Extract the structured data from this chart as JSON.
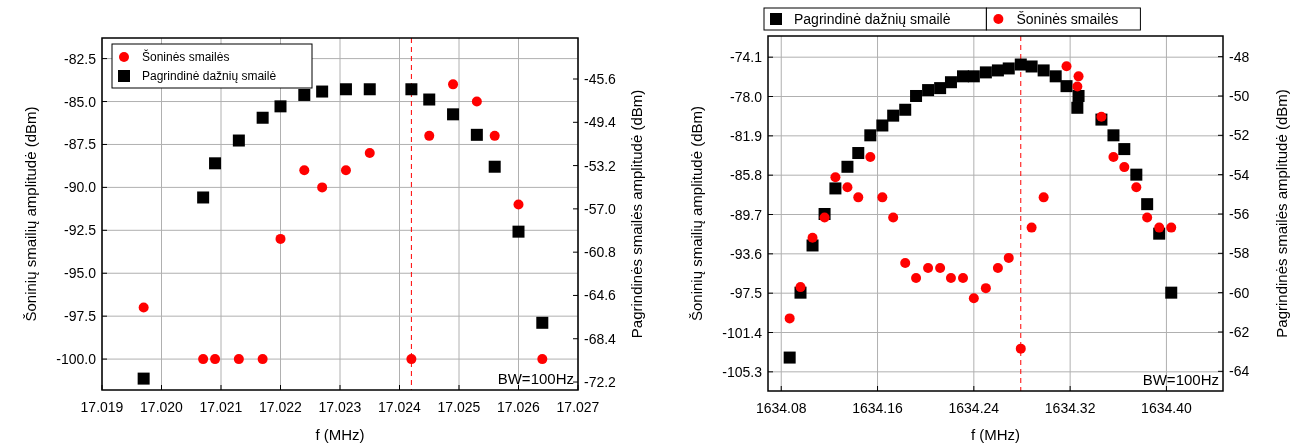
{
  "chart_data": [
    {
      "type": "scatter",
      "xlabel": "f (MHz)",
      "ylabel": "Šoninių smailių amplitudė (dBm)",
      "y2label": "Pagrindinės smailės amplitudė (dBm)",
      "xlim": [
        17.019,
        17.027
      ],
      "xticks": [
        17.019,
        {
          "value": 17.02,
          "label": "17.020"
        },
        17.021,
        17.022,
        17.023,
        17.024,
        17.025,
        17.026,
        17.027
      ],
      "ylim": [
        -101.8,
        -81.3
      ],
      "yticks": [
        -82.5,
        {
          "value": -85,
          "label": "-85.0"
        },
        -87.5,
        {
          "value": -90,
          "label": "-90.0"
        },
        -92.5,
        {
          "value": -95,
          "label": "-95.0"
        },
        -97.5,
        {
          "value": -100,
          "label": "-100.0"
        }
      ],
      "y2lim": [
        -72.9,
        -42.0
      ],
      "y2ticks": [
        -45.6,
        -49.4,
        -53.2,
        {
          "value": -57,
          "label": "-57.0"
        },
        -60.8,
        -64.6,
        -68.4,
        -72.2
      ],
      "grid": true,
      "legend": "top left",
      "annotations": [
        "BW=100Hz"
      ],
      "ref_lines": [
        {
          "axis": "x",
          "value": 17.0242,
          "color": "#ff0000",
          "line_style": "dashed"
        }
      ],
      "series": [
        {
          "name": "Šoninės smailės",
          "color": "#ff0000",
          "marker": "circle",
          "x": [
            17.0197,
            17.0207,
            17.0209,
            17.0213,
            17.0217,
            17.022,
            17.0224,
            17.0227,
            17.0231,
            17.0235,
            17.0242,
            17.0245,
            17.0249,
            17.0253,
            17.0256,
            17.026,
            17.0264
          ],
          "values": [
            -97.0,
            -100.0,
            -100.0,
            -100.0,
            -100.0,
            -93.0,
            -89.0,
            -90.0,
            -89.0,
            -88.0,
            -100.0,
            -87.0,
            -84.0,
            -85.0,
            -87.0,
            -91.0,
            -100.0
          ]
        },
        {
          "name": "Pagrindinė dažnių smailė",
          "color": "#000000",
          "marker": "square",
          "axis": "y2",
          "x": [
            17.0197,
            17.0207,
            17.0209,
            17.0213,
            17.0217,
            17.022,
            17.0224,
            17.0227,
            17.0231,
            17.0235,
            17.0242,
            17.0245,
            17.0249,
            17.0253,
            17.0256,
            17.026,
            17.0264
          ],
          "values": [
            -71.9,
            -56.0,
            -53.0,
            -51.0,
            -49.0,
            -48.0,
            -47.0,
            -46.7,
            -46.5,
            -46.5,
            -46.5,
            -47.4,
            -48.7,
            -50.5,
            -53.3,
            -59.0,
            -67.0
          ]
        }
      ]
    },
    {
      "type": "scatter",
      "xlabel": "f (MHz)",
      "ylabel": "Šoninių smailių amplitudė (dBm)",
      "y2label": "Pagrindinės smailės amplitudė (dBm)",
      "xlim": [
        1634.069,
        1634.447
      ],
      "xticks": [
        1634.08,
        1634.16,
        1634.24,
        1634.32,
        {
          "value": 1634.4,
          "label": "1634.40"
        }
      ],
      "ylim": [
        -107.2,
        -72.0
      ],
      "yticks": [
        -74.1,
        {
          "value": -78,
          "label": "-78.0"
        },
        -81.9,
        -85.8,
        -89.7,
        -93.6,
        -97.5,
        -101.4,
        -105.3
      ],
      "y2lim": [
        -65.0,
        -46.95
      ],
      "y2ticks": [
        -48,
        -50,
        -52,
        -54,
        -56,
        -58,
        -60,
        -62,
        -64
      ],
      "grid": true,
      "legend": "top",
      "annotations": [
        "BW=100Hz"
      ],
      "ref_lines": [
        {
          "axis": "x",
          "value": 1634.279,
          "color": "#ff0000",
          "line_style": "dashed"
        }
      ],
      "series": [
        {
          "name": "Pagrindinė dažnių smailė",
          "color": "#000000",
          "marker": "square",
          "axis": "y2",
          "x": [
            1634.087,
            1634.096,
            1634.106,
            1634.116,
            1634.125,
            1634.135,
            1634.144,
            1634.154,
            1634.164,
            1634.173,
            1634.183,
            1634.192,
            1634.202,
            1634.212,
            1634.221,
            1634.231,
            1634.24,
            1634.25,
            1634.26,
            1634.269,
            1634.279,
            1634.288,
            1634.298,
            1634.308,
            1634.317,
            1634.327,
            1634.326,
            1634.346,
            1634.356,
            1634.365,
            1634.375,
            1634.384,
            1634.394,
            1634.404
          ],
          "values": [
            -63.3,
            -60.0,
            -57.6,
            -56.0,
            -54.7,
            -53.6,
            -52.9,
            -52.0,
            -51.5,
            -51.0,
            -50.7,
            -50.0,
            -49.7,
            -49.6,
            -49.3,
            -49.0,
            -49.0,
            -48.8,
            -48.7,
            -48.6,
            -48.4,
            -48.5,
            -48.7,
            -49.0,
            -49.5,
            -50.0,
            -50.6,
            -51.2,
            -52.0,
            -52.7,
            -54.0,
            -55.5,
            -57.0,
            -60.0
          ]
        },
        {
          "name": "Šoninės smailės",
          "color": "#ff0000",
          "marker": "circle",
          "x": [
            1634.087,
            1634.096,
            1634.106,
            1634.116,
            1634.125,
            1634.135,
            1634.144,
            1634.154,
            1634.164,
            1634.173,
            1634.183,
            1634.192,
            1634.202,
            1634.212,
            1634.221,
            1634.231,
            1634.24,
            1634.25,
            1634.26,
            1634.269,
            1634.279,
            1634.288,
            1634.298,
            1634.317,
            1634.327,
            1634.326,
            1634.346,
            1634.356,
            1634.365,
            1634.375,
            1634.384,
            1634.394,
            1634.404
          ],
          "values": [
            -100.0,
            -96.9,
            -92.0,
            -90.0,
            -86.0,
            -87.0,
            -88.0,
            -84.0,
            -88.0,
            -90.0,
            -94.5,
            -96.0,
            -95.0,
            -95.0,
            -96.0,
            -96.0,
            -98.0,
            -97.0,
            -95.0,
            -94.0,
            -103.0,
            -91.0,
            -88.0,
            -75.0,
            -76.0,
            -77.0,
            -80.0,
            -84.0,
            -85.0,
            -87.0,
            -90.0,
            -91.0,
            -91.0
          ]
        }
      ]
    }
  ]
}
